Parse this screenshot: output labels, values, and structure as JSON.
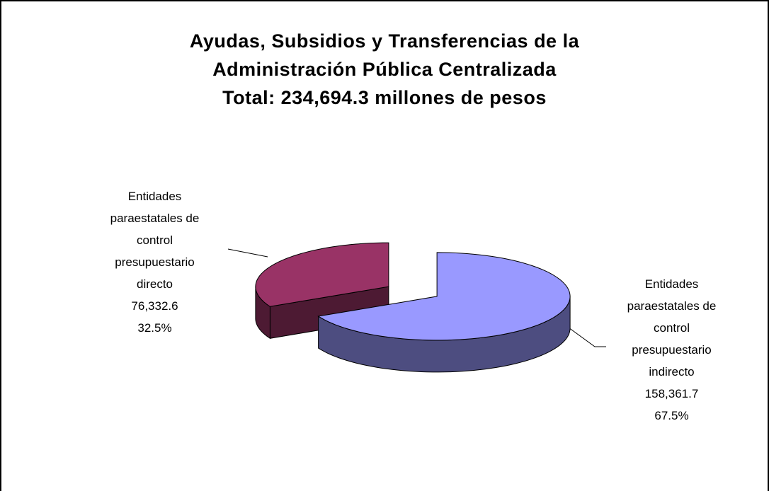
{
  "chart_data": {
    "type": "pie3d",
    "title": [
      "Ayudas, Subsidios y Transferencias de la",
      "Administración Pública Centralizada",
      "Total: 234,694.3 millones de pesos"
    ],
    "categories": [
      "Entidades paraestatales de control presupuestario directo",
      "Entidades paraestatales de control presupuestario indirecto"
    ],
    "values": [
      76332.6,
      158361.7
    ],
    "value_labels": [
      "76,332.6",
      "158,361.7"
    ],
    "percentages": [
      32.5,
      67.5
    ],
    "percentage_labels": [
      "32.5%",
      "67.5%"
    ],
    "colors": [
      "#993366",
      "#9999ff"
    ]
  }
}
